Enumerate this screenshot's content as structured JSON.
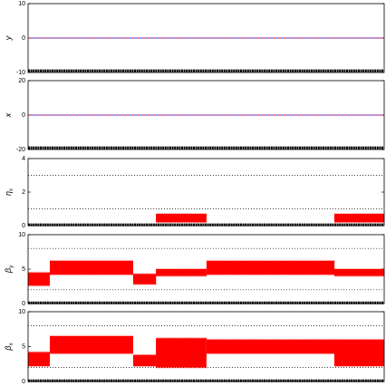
{
  "chart_data": [
    {
      "type": "band",
      "ylabel": "y",
      "ylim": [
        -10,
        10
      ],
      "yticks": [
        -10,
        0,
        10
      ],
      "lines": [
        {
          "value": 0,
          "color": "#0000ff"
        },
        {
          "value": 0,
          "color": "#ff0000",
          "dashed": true
        }
      ],
      "baseline": {
        "value": -9.5,
        "color": "#000000"
      }
    },
    {
      "type": "band",
      "ylabel": "x",
      "ylim": [
        -20,
        20
      ],
      "yticks": [
        -20,
        0,
        20
      ],
      "lines": [
        {
          "value": 0,
          "color": "#0000ff"
        },
        {
          "value": 0,
          "color": "#ff0000",
          "dashed": true
        }
      ],
      "baseline": {
        "value": -19,
        "color": "#000000"
      }
    },
    {
      "type": "band",
      "ylabel": "η",
      "ylabel_sub": "x",
      "ylim": [
        0,
        4
      ],
      "yticks": [
        0,
        2,
        4
      ],
      "hlines": [
        1,
        3
      ],
      "baseline": {
        "value": 0.05,
        "color": "#000000"
      },
      "bands": {
        "color": "#ff0000",
        "x": [
          [
            35.9,
            50.1
          ],
          [
            86.0,
            100
          ]
        ],
        "low": [
          0.2,
          0.2
        ],
        "high": [
          0.7,
          0.7
        ]
      }
    },
    {
      "type": "band",
      "ylabel": "β",
      "ylabel_sub": "y",
      "ylim": [
        0,
        10
      ],
      "yticks": [
        0,
        5,
        10
      ],
      "hlines": [
        2,
        8
      ],
      "baseline": {
        "value": 0.1,
        "color": "#000000"
      },
      "bands": {
        "color": "#ff0000",
        "x": [
          [
            0,
            6.1
          ],
          [
            6.1,
            29.5
          ],
          [
            29.5,
            35.9
          ],
          [
            35.9,
            50.1
          ],
          [
            50.1,
            86.0
          ],
          [
            86.0,
            100
          ]
        ],
        "low": [
          2.6,
          4.2,
          2.8,
          4.0,
          4.2,
          4.0
        ],
        "high": [
          4.5,
          6.2,
          4.3,
          5.0,
          6.2,
          5.0
        ]
      }
    },
    {
      "type": "band",
      "ylabel": "β",
      "ylabel_sub": "x",
      "ylim": [
        0,
        10
      ],
      "yticks": [
        0,
        5,
        10
      ],
      "hlines": [
        2,
        8
      ],
      "baseline": {
        "value": 0.1,
        "color": "#000000"
      },
      "bands": {
        "color": "#ff0000",
        "x": [
          [
            0,
            6.1
          ],
          [
            6.1,
            29.5
          ],
          [
            29.5,
            35.9
          ],
          [
            35.9,
            50.1
          ],
          [
            50.1,
            86.0
          ],
          [
            86.0,
            100
          ]
        ],
        "low": [
          2.2,
          4.0,
          2.2,
          2.0,
          4.0,
          2.2
        ],
        "high": [
          4.2,
          6.5,
          3.8,
          6.2,
          6.0,
          6.0
        ]
      }
    }
  ]
}
